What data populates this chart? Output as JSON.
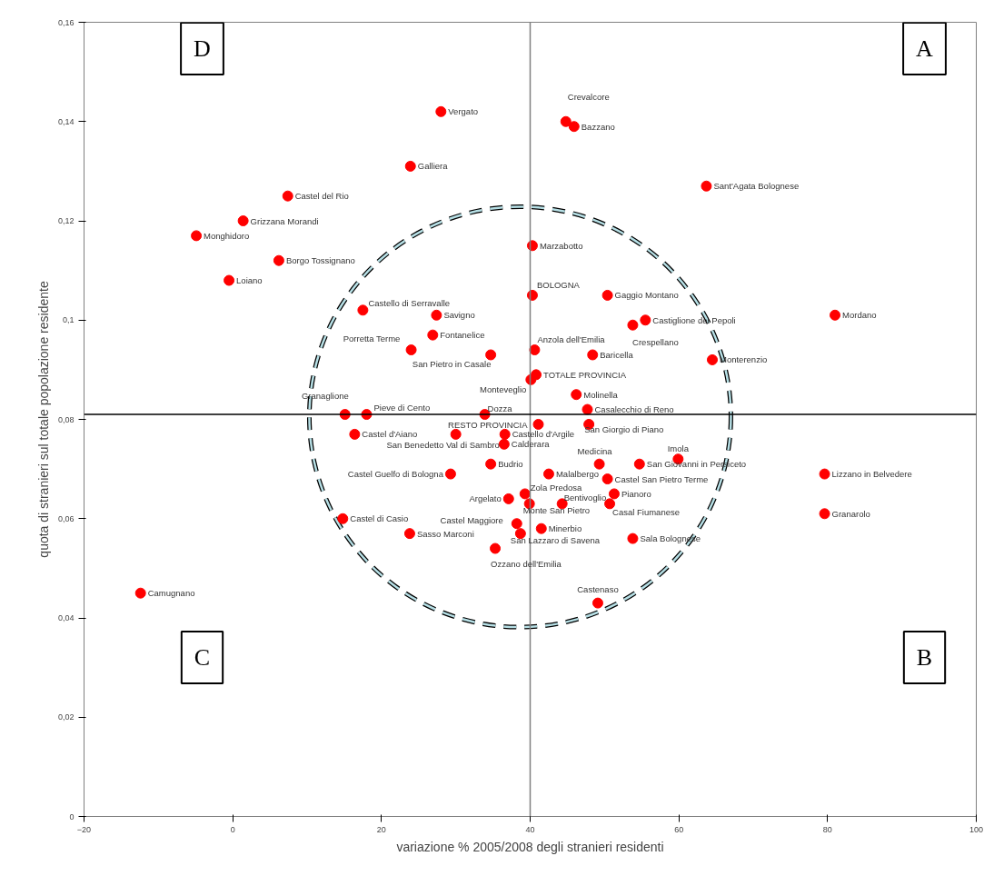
{
  "chart_data": {
    "type": "scatter",
    "xlabel": "variazione % 2005/2008 degli stranieri residenti",
    "ylabel": "quota di stranieri sul totale popolazione residente",
    "xlim": [
      -20,
      100
    ],
    "xticks": [
      -20,
      0,
      20,
      40,
      60,
      80,
      100
    ],
    "ylim": [
      0,
      0.16
    ],
    "yticks": [
      {
        "value": 0,
        "label": "0"
      },
      {
        "value": 0.02,
        "label": "0,02"
      },
      {
        "value": 0.04,
        "label": "0,04"
      },
      {
        "value": 0.06,
        "label": "0,06"
      },
      {
        "value": 0.08,
        "label": "0,08"
      },
      {
        "value": 0.1,
        "label": "0,1"
      },
      {
        "value": 0.12,
        "label": "0,12"
      },
      {
        "value": 0.14,
        "label": "0,14"
      },
      {
        "value": 0.16,
        "label": "0,16"
      }
    ],
    "grid": false,
    "marker": "circle",
    "series": [
      {
        "color": "#ff0000",
        "x": [
          28.0,
          23.9,
          7.4,
          1.4,
          -4.9,
          6.2,
          -0.5,
          44.8,
          45.9,
          63.7,
          40.3,
          40.3,
          50.4,
          55.5,
          53.8,
          81.0,
          64.5,
          40.6,
          48.4,
          40.8,
          40.1,
          46.2,
          47.7,
          41.1,
          47.9,
          49.3,
          54.7,
          59.9,
          17.5,
          27.4,
          26.9,
          24.0,
          34.7,
          15.1,
          18.0,
          33.9,
          16.4,
          30.0,
          36.6,
          36.5,
          34.7,
          29.3,
          37.1,
          39.3,
          39.9,
          38.2,
          38.7,
          35.3,
          14.8,
          23.8,
          -12.4,
          42.5,
          50.4,
          51.3,
          44.3,
          50.7,
          41.5,
          53.8,
          49.1,
          79.6,
          79.6
        ],
        "values": [
          0.142,
          0.131,
          0.125,
          0.12,
          0.117,
          0.112,
          0.108,
          0.14,
          0.139,
          0.127,
          0.115,
          0.105,
          0.105,
          0.1,
          0.099,
          0.101,
          0.092,
          0.094,
          0.093,
          0.089,
          0.088,
          0.085,
          0.082,
          0.079,
          0.079,
          0.071,
          0.071,
          0.072,
          0.102,
          0.101,
          0.097,
          0.094,
          0.093,
          0.081,
          0.081,
          0.081,
          0.077,
          0.077,
          0.077,
          0.075,
          0.071,
          0.069,
          0.064,
          0.065,
          0.063,
          0.059,
          0.057,
          0.054,
          0.06,
          0.057,
          0.045,
          0.069,
          0.068,
          0.065,
          0.063,
          0.063,
          0.058,
          0.056,
          0.043,
          0.069,
          0.061
        ]
      }
    ],
    "ref_lines": [
      {
        "axis": "x",
        "value": 40,
        "color": "#808080"
      },
      {
        "axis": "y",
        "value": 0.081,
        "color": "#000000"
      }
    ],
    "annotations": [
      {
        "text": "Vergato",
        "x": 28.0,
        "y": 0.142
      },
      {
        "text": "Galliera",
        "x": 23.9,
        "y": 0.131
      },
      {
        "text": "Castel del Rio",
        "x": 7.4,
        "y": 0.125
      },
      {
        "text": "Grizzana Morandi",
        "x": 1.4,
        "y": 0.12
      },
      {
        "text": "Monghidoro",
        "x": -4.9,
        "y": 0.117
      },
      {
        "text": "Borgo Tossignano",
        "x": 6.2,
        "y": 0.112
      },
      {
        "text": "Loiano",
        "x": -0.5,
        "y": 0.108
      },
      {
        "text": "Crevalcore",
        "x": 44.8,
        "y": 0.14
      },
      {
        "text": "Bazzano",
        "x": 45.9,
        "y": 0.139
      },
      {
        "text": "Sant'Agata Bolognese",
        "x": 63.7,
        "y": 0.127
      },
      {
        "text": "Marzabotto",
        "x": 40.3,
        "y": 0.115
      },
      {
        "text": "BOLOGNA",
        "x": 40.3,
        "y": 0.105
      },
      {
        "text": "Gaggio Montano",
        "x": 50.4,
        "y": 0.105
      },
      {
        "text": "Castiglione dei Pepoli",
        "x": 55.5,
        "y": 0.1
      },
      {
        "text": "Crespellano",
        "x": 53.8,
        "y": 0.099
      },
      {
        "text": "Mordano",
        "x": 81.0,
        "y": 0.101
      },
      {
        "text": "Monterenzio",
        "x": 64.5,
        "y": 0.092
      },
      {
        "text": "Anzola dell'Emilia",
        "x": 40.6,
        "y": 0.094
      },
      {
        "text": "Baricella",
        "x": 48.4,
        "y": 0.093
      },
      {
        "text": "TOTALE PROVINCIA",
        "x": 40.8,
        "y": 0.089
      },
      {
        "text": "Monteveglio",
        "x": 40.1,
        "y": 0.088
      },
      {
        "text": "Molinella",
        "x": 46.2,
        "y": 0.085
      },
      {
        "text": "Casalecchio di Reno",
        "x": 47.7,
        "y": 0.082
      },
      {
        "text": "RESTO PROVINCIA",
        "x": 41.1,
        "y": 0.079
      },
      {
        "text": "San Giorgio di Piano",
        "x": 47.9,
        "y": 0.079
      },
      {
        "text": "Medicina",
        "x": 49.3,
        "y": 0.071
      },
      {
        "text": "San Giovanni in Persiceto",
        "x": 54.7,
        "y": 0.071
      },
      {
        "text": "Imola",
        "x": 59.9,
        "y": 0.072
      },
      {
        "text": "Castello di Serravalle",
        "x": 17.5,
        "y": 0.102
      },
      {
        "text": "Savigno",
        "x": 27.4,
        "y": 0.101
      },
      {
        "text": "Fontanelice",
        "x": 26.9,
        "y": 0.097
      },
      {
        "text": "Porretta Terme",
        "x": 24.0,
        "y": 0.094
      },
      {
        "text": "San Pietro in Casale",
        "x": 34.7,
        "y": 0.093
      },
      {
        "text": "Granaglione",
        "x": 15.1,
        "y": 0.081
      },
      {
        "text": "Pieve di Cento",
        "x": 18.0,
        "y": 0.081
      },
      {
        "text": "Dozza",
        "x": 33.9,
        "y": 0.081
      },
      {
        "text": "Castel d'Aiano",
        "x": 16.4,
        "y": 0.077
      },
      {
        "text": "San Benedetto Val di Sambro",
        "x": 30.0,
        "y": 0.077
      },
      {
        "text": "Castello d'Argile",
        "x": 36.6,
        "y": 0.077
      },
      {
        "text": "Calderara",
        "x": 36.5,
        "y": 0.075
      },
      {
        "text": "Budrio",
        "x": 34.7,
        "y": 0.071
      },
      {
        "text": "Castel Guelfo di Bologna",
        "x": 29.3,
        "y": 0.069
      },
      {
        "text": "Argelato",
        "x": 37.1,
        "y": 0.064
      },
      {
        "text": "Zola Predosa",
        "x": 39.3,
        "y": 0.065
      },
      {
        "text": "Monte San Pietro",
        "x": 39.9,
        "y": 0.063
      },
      {
        "text": "Castel Maggiore",
        "x": 38.2,
        "y": 0.059
      },
      {
        "text": "San Lazzaro di Savena",
        "x": 38.7,
        "y": 0.057
      },
      {
        "text": "Ozzano dell'Emilia",
        "x": 35.3,
        "y": 0.054
      },
      {
        "text": "Castel di Casio",
        "x": 14.8,
        "y": 0.06
      },
      {
        "text": "Sasso Marconi",
        "x": 23.8,
        "y": 0.057
      },
      {
        "text": "Camugnano",
        "x": -12.4,
        "y": 0.045
      },
      {
        "text": "Malalbergo",
        "x": 42.5,
        "y": 0.069
      },
      {
        "text": "Castel San Pietro Terme",
        "x": 50.4,
        "y": 0.068
      },
      {
        "text": "Pianoro",
        "x": 51.3,
        "y": 0.065
      },
      {
        "text": "Bentivoglio",
        "x": 44.3,
        "y": 0.063
      },
      {
        "text": "Casal Fiumanese",
        "x": 50.7,
        "y": 0.063
      },
      {
        "text": "Minerbio",
        "x": 41.5,
        "y": 0.058
      },
      {
        "text": "Sala Bolognese",
        "x": 53.8,
        "y": 0.056
      },
      {
        "text": "Castenaso",
        "x": 49.1,
        "y": 0.043
      },
      {
        "text": "Lizzano in Belvedere",
        "x": 79.6,
        "y": 0.069
      },
      {
        "text": "Granarolo",
        "x": 79.6,
        "y": 0.061
      },
      "D",
      "A",
      "C",
      "B"
    ]
  }
}
